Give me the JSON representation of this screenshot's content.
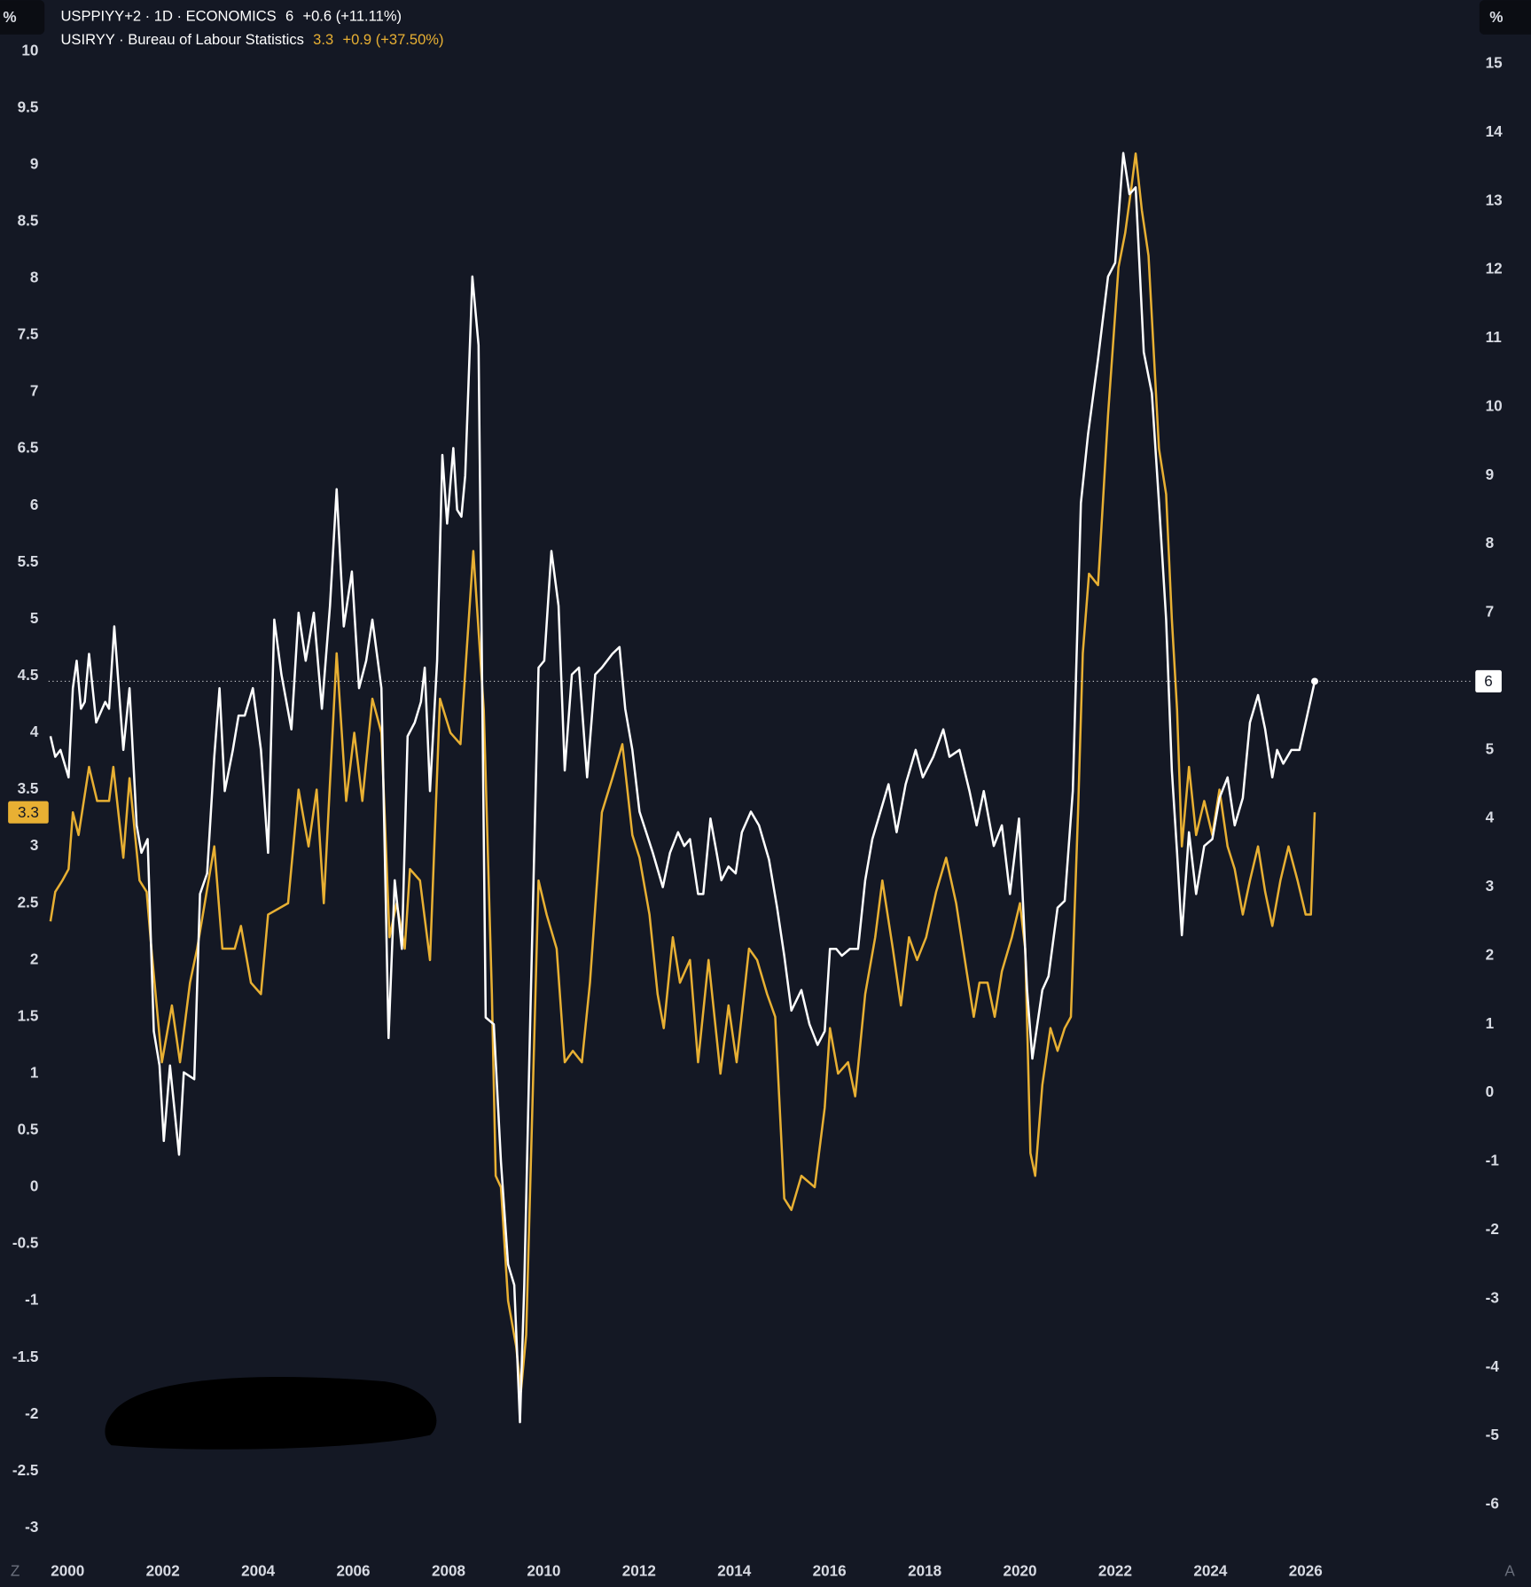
{
  "chart_data": {
    "type": "line",
    "ylabel": "%",
    "y2label": "%",
    "xlim": [
      1999.6,
      2029.5
    ],
    "xticks": [
      2000,
      2002,
      2004,
      2006,
      2008,
      2010,
      2012,
      2014,
      2016,
      2018,
      2020,
      2022,
      2024,
      2026
    ],
    "ylim": [
      -3.18,
      10.45
    ],
    "yticks": [
      -3,
      -2.5,
      -2,
      -1.5,
      -1,
      -0.5,
      0,
      0.5,
      1,
      1.5,
      2,
      2.5,
      3,
      3.5,
      4,
      4.5,
      5,
      5.5,
      6,
      6.5,
      7,
      7.5,
      8,
      8.5,
      9,
      9.5,
      10
    ],
    "y2lim": [
      -6.64,
      15.93
    ],
    "y2ticks": [
      -6,
      -5,
      -4,
      -3,
      -2,
      -1,
      0,
      1,
      2,
      3,
      4,
      5,
      6,
      7,
      8,
      9,
      10,
      11,
      12,
      13,
      14,
      15
    ],
    "grid": false,
    "controls": [
      "Z",
      "A"
    ],
    "series": [
      {
        "name": "USPPIYY+2 · 1D · ECONOMICS",
        "change": "+0.6 (+11.11%)",
        "color": "#ffffff",
        "axis": "y2",
        "price_line": true,
        "x": [
          1999.64,
          1999.74,
          1999.85,
          2000.02,
          2000.11,
          2000.19,
          2000.28,
          2000.36,
          2000.45,
          2000.6,
          2000.79,
          2000.87,
          2000.98,
          2001.17,
          2001.3,
          2001.45,
          2001.55,
          2001.68,
          2001.81,
          2001.93,
          2002.02,
          2002.15,
          2002.34,
          2002.44,
          2002.66,
          2002.78,
          2002.93,
          2003.08,
          2003.19,
          2003.3,
          2003.47,
          2003.59,
          2003.72,
          2003.89,
          2004.06,
          2004.21,
          2004.34,
          2004.49,
          2004.7,
          2004.85,
          2005.0,
          2005.17,
          2005.34,
          2005.51,
          2005.65,
          2005.8,
          2005.97,
          2006.12,
          2006.27,
          2006.4,
          2006.59,
          2006.74,
          2006.87,
          2007.02,
          2007.14,
          2007.29,
          2007.42,
          2007.5,
          2007.61,
          2007.76,
          2007.87,
          2007.97,
          2008.1,
          2008.18,
          2008.27,
          2008.35,
          2008.5,
          2008.63,
          2008.78,
          2008.95,
          2009.1,
          2009.25,
          2009.38,
          2009.5,
          2009.59,
          2009.72,
          2009.89,
          2010.01,
          2010.16,
          2010.31,
          2010.44,
          2010.59,
          2010.74,
          2010.91,
          2011.08,
          2011.22,
          2011.44,
          2011.59,
          2011.71,
          2011.86,
          2012.01,
          2012.29,
          2012.5,
          2012.65,
          2012.82,
          2012.95,
          2013.07,
          2013.24,
          2013.35,
          2013.5,
          2013.63,
          2013.73,
          2013.88,
          2014.03,
          2014.16,
          2014.35,
          2014.52,
          2014.73,
          2014.9,
          2015.05,
          2015.2,
          2015.41,
          2015.58,
          2015.75,
          2015.9,
          2016.01,
          2016.14,
          2016.26,
          2016.43,
          2016.6,
          2016.75,
          2016.9,
          2017.07,
          2017.24,
          2017.41,
          2017.6,
          2017.81,
          2017.96,
          2018.18,
          2018.39,
          2018.52,
          2018.73,
          2018.94,
          2019.09,
          2019.24,
          2019.45,
          2019.62,
          2019.79,
          2019.98,
          2020.15,
          2020.26,
          2020.47,
          2020.6,
          2020.79,
          2020.94,
          2021.11,
          2021.28,
          2021.43,
          2021.64,
          2021.85,
          2022.0,
          2022.17,
          2022.3,
          2022.43,
          2022.6,
          2022.77,
          2022.92,
          2023.07,
          2023.19,
          2023.3,
          2023.4,
          2023.55,
          2023.7,
          2023.87,
          2024.04,
          2024.19,
          2024.36,
          2024.51,
          2024.68,
          2024.83,
          2025.0,
          2025.15,
          2025.3,
          2025.4,
          2025.53,
          2025.7,
          2025.87,
          2026.0,
          2026.19
        ],
        "values": [
          5.2,
          4.9,
          5.0,
          4.6,
          5.9,
          6.3,
          5.6,
          5.7,
          6.4,
          5.4,
          5.7,
          5.6,
          6.8,
          5.0,
          5.9,
          3.9,
          3.5,
          3.7,
          0.9,
          0.4,
          -0.7,
          0.4,
          -0.9,
          0.3,
          0.2,
          2.9,
          3.2,
          4.9,
          5.9,
          4.4,
          5.0,
          5.5,
          5.5,
          5.9,
          5.0,
          3.5,
          6.9,
          6.1,
          5.3,
          7.0,
          6.3,
          7.0,
          5.6,
          7.1,
          8.8,
          6.8,
          7.6,
          5.9,
          6.3,
          6.9,
          5.9,
          0.8,
          3.1,
          2.1,
          5.2,
          5.4,
          5.7,
          6.2,
          4.4,
          6.3,
          9.3,
          8.3,
          9.4,
          8.5,
          8.4,
          9.0,
          11.9,
          10.9,
          1.1,
          1.0,
          -1.0,
          -2.5,
          -2.8,
          -4.8,
          -2.8,
          1.2,
          6.2,
          6.3,
          7.9,
          7.1,
          4.7,
          6.1,
          6.2,
          4.6,
          6.1,
          6.2,
          6.4,
          6.5,
          5.6,
          5.0,
          4.1,
          3.5,
          3.0,
          3.5,
          3.8,
          3.6,
          3.7,
          2.9,
          2.9,
          4.0,
          3.5,
          3.1,
          3.3,
          3.2,
          3.8,
          4.1,
          3.9,
          3.4,
          2.7,
          2.0,
          1.2,
          1.5,
          1.0,
          0.7,
          0.9,
          2.1,
          2.1,
          2.0,
          2.1,
          2.1,
          3.1,
          3.7,
          4.1,
          4.5,
          3.8,
          4.5,
          5.0,
          4.6,
          4.9,
          5.3,
          4.9,
          5.0,
          4.4,
          3.9,
          4.4,
          3.6,
          3.9,
          2.9,
          4.0,
          1.5,
          0.5,
          1.5,
          1.7,
          2.7,
          2.8,
          4.4,
          8.6,
          9.6,
          10.7,
          11.9,
          12.1,
          13.7,
          13.1,
          13.2,
          10.8,
          10.2,
          8.6,
          6.9,
          4.7,
          3.5,
          2.3,
          3.8,
          2.9,
          3.6,
          3.7,
          4.3,
          4.6,
          3.9,
          4.3,
          5.4,
          5.8,
          5.3,
          4.6,
          5.0,
          4.8,
          5.0,
          5.0,
          5.4,
          6
        ]
      },
      {
        "name": "USIRYY · Bureau of Labour Statistics",
        "change": "+0.9 (+37.50%)",
        "color": "#e8b033",
        "axis": "y",
        "x": [
          1999.64,
          1999.74,
          1999.89,
          2000.02,
          2000.11,
          2000.23,
          2000.45,
          2000.62,
          2000.87,
          2000.96,
          2001.17,
          2001.3,
          2001.51,
          2001.66,
          2001.76,
          2001.98,
          2002.19,
          2002.36,
          2002.57,
          2002.72,
          2003.08,
          2003.25,
          2003.51,
          2003.64,
          2003.85,
          2004.06,
          2004.21,
          2004.63,
          2004.85,
          2005.06,
          2005.23,
          2005.38,
          2005.65,
          2005.85,
          2006.02,
          2006.19,
          2006.4,
          2006.59,
          2006.76,
          2006.91,
          2007.08,
          2007.19,
          2007.4,
          2007.61,
          2007.82,
          2008.04,
          2008.25,
          2008.52,
          2008.74,
          2008.91,
          2008.99,
          2009.1,
          2009.25,
          2009.42,
          2009.52,
          2009.63,
          2009.89,
          2010.06,
          2010.27,
          2010.44,
          2010.61,
          2010.8,
          2010.97,
          2011.22,
          2011.44,
          2011.65,
          2011.86,
          2012.01,
          2012.22,
          2012.39,
          2012.52,
          2012.71,
          2012.86,
          2013.07,
          2013.24,
          2013.46,
          2013.71,
          2013.88,
          2014.05,
          2014.31,
          2014.48,
          2014.69,
          2014.86,
          2015.05,
          2015.2,
          2015.41,
          2015.69,
          2015.9,
          2016.01,
          2016.18,
          2016.39,
          2016.54,
          2016.75,
          2016.96,
          2017.11,
          2017.33,
          2017.5,
          2017.67,
          2017.84,
          2018.03,
          2018.24,
          2018.45,
          2018.66,
          2018.88,
          2019.03,
          2019.15,
          2019.32,
          2019.47,
          2019.62,
          2019.83,
          2020.0,
          2020.11,
          2020.22,
          2020.32,
          2020.47,
          2020.64,
          2020.79,
          2020.94,
          2021.07,
          2021.22,
          2021.32,
          2021.45,
          2021.64,
          2021.85,
          2022.07,
          2022.21,
          2022.34,
          2022.43,
          2022.56,
          2022.7,
          2022.92,
          2023.07,
          2023.19,
          2023.3,
          2023.4,
          2023.55,
          2023.7,
          2023.87,
          2024.04,
          2024.19,
          2024.36,
          2024.51,
          2024.68,
          2024.83,
          2025.0,
          2025.15,
          2025.3,
          2025.47,
          2025.64,
          2025.83,
          2026.0,
          2026.11,
          2026.19
        ],
        "values": [
          2.34,
          2.6,
          2.7,
          2.8,
          3.3,
          3.1,
          3.7,
          3.4,
          3.4,
          3.7,
          2.9,
          3.6,
          2.7,
          2.6,
          2.1,
          1.1,
          1.6,
          1.1,
          1.8,
          2.1,
          3.0,
          2.1,
          2.1,
          2.3,
          1.8,
          1.7,
          2.4,
          2.5,
          3.5,
          3.0,
          3.5,
          2.5,
          4.7,
          3.4,
          4.0,
          3.4,
          4.3,
          4.0,
          2.2,
          2.5,
          2.1,
          2.8,
          2.7,
          2.0,
          4.3,
          4.0,
          3.9,
          5.6,
          4.2,
          1.7,
          0.1,
          0.0,
          -1.0,
          -1.4,
          -1.8,
          -1.3,
          2.7,
          2.4,
          2.1,
          1.1,
          1.2,
          1.1,
          1.8,
          3.3,
          3.6,
          3.9,
          3.1,
          2.9,
          2.4,
          1.7,
          1.4,
          2.2,
          1.8,
          2.0,
          1.1,
          2.0,
          1.0,
          1.6,
          1.1,
          2.1,
          2.0,
          1.7,
          1.5,
          -0.1,
          -0.2,
          0.1,
          0.0,
          0.7,
          1.4,
          1.0,
          1.1,
          0.8,
          1.7,
          2.2,
          2.7,
          2.1,
          1.6,
          2.2,
          2.0,
          2.2,
          2.6,
          2.9,
          2.5,
          1.9,
          1.5,
          1.8,
          1.8,
          1.5,
          1.9,
          2.2,
          2.5,
          2.1,
          0.3,
          0.1,
          0.9,
          1.4,
          1.2,
          1.4,
          1.5,
          3.3,
          4.7,
          5.4,
          5.3,
          6.8,
          8.1,
          8.4,
          8.8,
          9.1,
          8.6,
          8.2,
          6.5,
          6.1,
          5.0,
          4.2,
          3.0,
          3.7,
          3.1,
          3.4,
          3.1,
          3.5,
          3.0,
          2.8,
          2.4,
          2.7,
          3.0,
          2.6,
          2.3,
          2.7,
          3.0,
          2.7,
          2.4,
          2.4,
          3.3
        ]
      }
    ]
  }
}
